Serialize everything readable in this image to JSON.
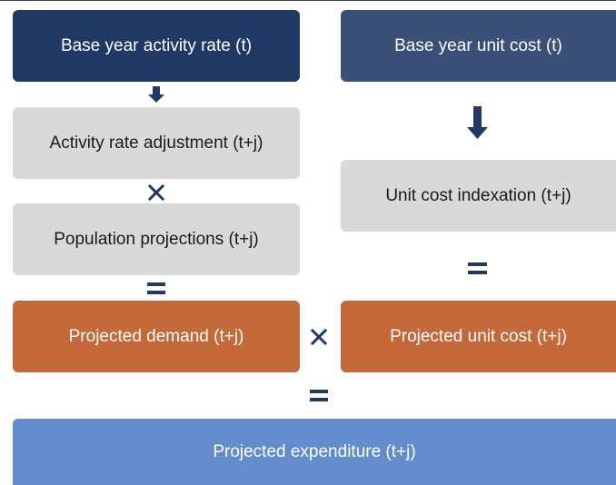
{
  "boxes": [
    {
      "label": "Base year activity rate (t)"
    },
    {
      "label": "Base year unit cost (t)"
    },
    {
      "label": "Activity rate adjustment (t+j)"
    },
    {
      "label": "Unit cost indexation (t+j)"
    },
    {
      "label": "Population projections (t+j)"
    },
    {
      "label": "Projected demand (t+j)"
    },
    {
      "label": "Projected unit cost (t+j)"
    },
    {
      "label": "Projected expenditure (t+j)"
    }
  ]
}
